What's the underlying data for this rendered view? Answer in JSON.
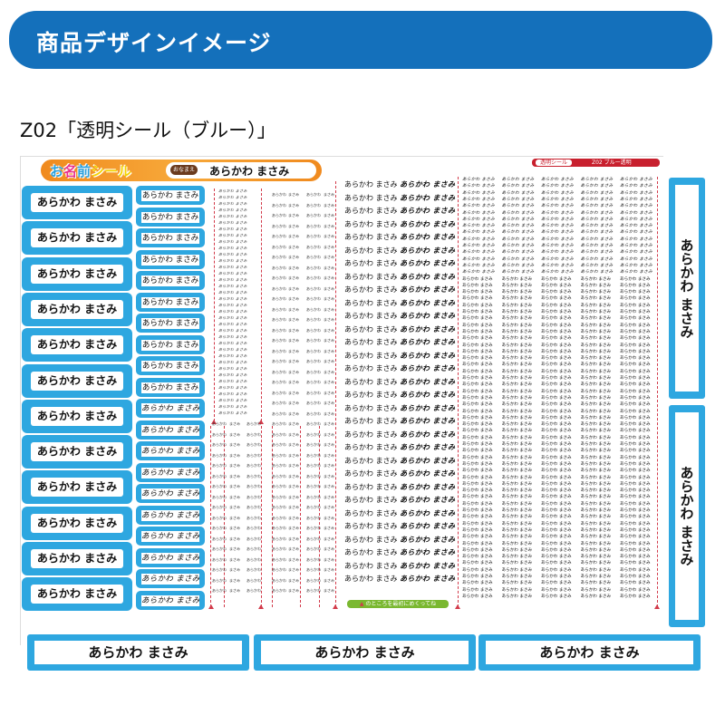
{
  "header": {
    "title": "商品デザインイメージ"
  },
  "product": {
    "title": "Z02「透明シール（ブルー）」"
  },
  "sheet": {
    "logo_text": "お名前シール",
    "name_tag": "おなまえ",
    "name": "あらかわ まさみ",
    "small_name_top": "あらかわ",
    "small_name_bottom": "まさみ",
    "red_tag_white": "透明シール",
    "red_tag_text": "Z02 ブルー透明",
    "peel_note": "のところを最初にめくってね",
    "peel_icon": "triangle-up-icon"
  },
  "colors": {
    "banner": "#1470bb",
    "label_blue": "#2ea7e0",
    "cut_line": "#d23a4a",
    "green": "#7ab830",
    "orange": "#f08a1e"
  }
}
